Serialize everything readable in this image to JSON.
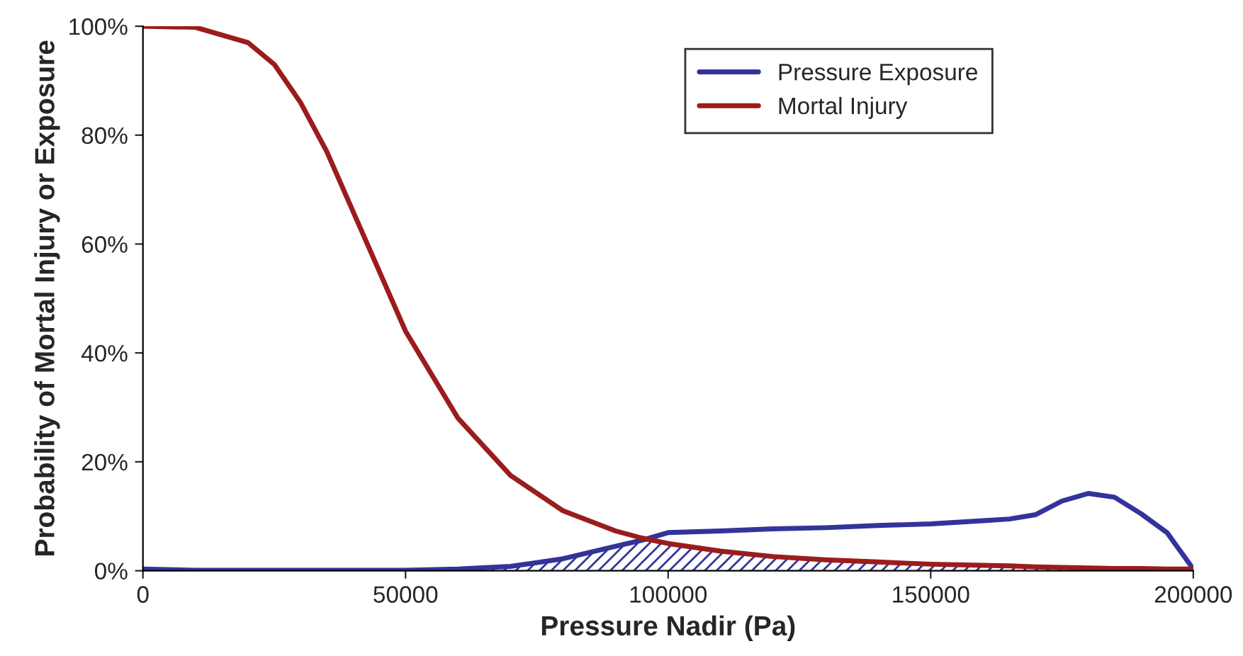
{
  "chart_data": {
    "type": "line",
    "xlabel": "Pressure Nadir (Pa)",
    "ylabel": "Probability of Mortal Injury or Exposure",
    "x": [
      0,
      10000,
      20000,
      25000,
      30000,
      35000,
      40000,
      50000,
      60000,
      70000,
      80000,
      90000,
      95000,
      100000,
      110000,
      120000,
      130000,
      140000,
      150000,
      160000,
      165000,
      170000,
      175000,
      180000,
      185000,
      190000,
      195000,
      200000
    ],
    "series": [
      {
        "name": "Pressure Exposure",
        "color": "#33349a",
        "values": [
          0.3,
          0.1,
          0.1,
          0.1,
          0.1,
          0.1,
          0.1,
          0.1,
          0.3,
          0.8,
          2.2,
          4.5,
          5.6,
          7,
          7.3,
          7.7,
          7.9,
          8.3,
          8.6,
          9.2,
          9.5,
          10.3,
          12.8,
          14.2,
          13.5,
          10.5,
          7,
          0.3
        ]
      },
      {
        "name": "Mortal Injury",
        "color": "#9b1c1c",
        "values": [
          100,
          99.8,
          97,
          93,
          86,
          77,
          66,
          44,
          28,
          17.5,
          11,
          7.3,
          6,
          5,
          3.6,
          2.6,
          2,
          1.6,
          1.2,
          1,
          0.9,
          0.7,
          0.6,
          0.5,
          0.4,
          0.4,
          0.3,
          0.3
        ]
      },
      {
        "type": "area",
        "color": "#33349a",
        "values": [
          0.3,
          0.1,
          0.1,
          0.1,
          0.1,
          0.1,
          0.1,
          0.1,
          0.3,
          0.8,
          2.2,
          4.5,
          5.6,
          5,
          3.6,
          2.6,
          2,
          1.6,
          1.2,
          1,
          0.9,
          0.7,
          0.6,
          0.5,
          0.4,
          0.4,
          0.3,
          0.3
        ]
      }
    ],
    "xlim": [
      0,
      200000
    ],
    "xticks": [
      0,
      50000,
      100000,
      150000,
      200000
    ],
    "ylim": [
      0,
      100
    ],
    "yticks": [
      {
        "value": 0,
        "label": "0%"
      },
      {
        "value": 20,
        "label": "20%"
      },
      {
        "value": 40,
        "label": "40%"
      },
      {
        "value": 60,
        "label": "60%"
      },
      {
        "value": 80,
        "label": "80%"
      },
      {
        "value": 100,
        "label": "100%"
      }
    ],
    "grid": false,
    "legend": "top right",
    "marker": "none",
    "line_style": "solid"
  }
}
